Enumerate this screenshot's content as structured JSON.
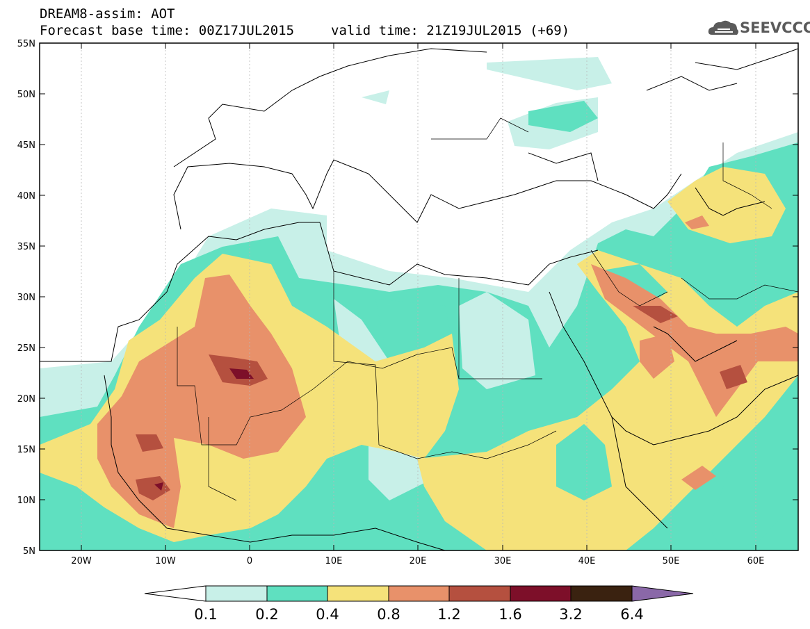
{
  "header": {
    "line1": "DREAM8-assim: AOT",
    "line2": "Forecast base time: 00Z17JUL2015",
    "line3": "valid time: 21Z19JUL2015 (+69)"
  },
  "logo": {
    "text": "SEEVCCC",
    "icon": "cloud-icon"
  },
  "map": {
    "lat_labels": [
      "55N",
      "50N",
      "45N",
      "40N",
      "35N",
      "30N",
      "25N",
      "20N",
      "15N",
      "10N",
      "5N"
    ],
    "lon_labels": [
      "20W",
      "10W",
      "0",
      "10E",
      "20E",
      "30E",
      "40E",
      "50E",
      "60E"
    ],
    "lat_range": [
      5,
      55
    ],
    "lon_range": [
      -25,
      65
    ],
    "variable": "AOT"
  },
  "legend": {
    "thresholds": [
      "0.1",
      "0.2",
      "0.4",
      "0.8",
      "1.2",
      "1.6",
      "3.2",
      "6.4"
    ],
    "colors": [
      "#ffffff",
      "#c8f0e8",
      "#5fe0c0",
      "#f5e27a",
      "#e8916a",
      "#b5503f",
      "#7d0f29",
      "#3a2210",
      "#8a68a8"
    ]
  }
}
